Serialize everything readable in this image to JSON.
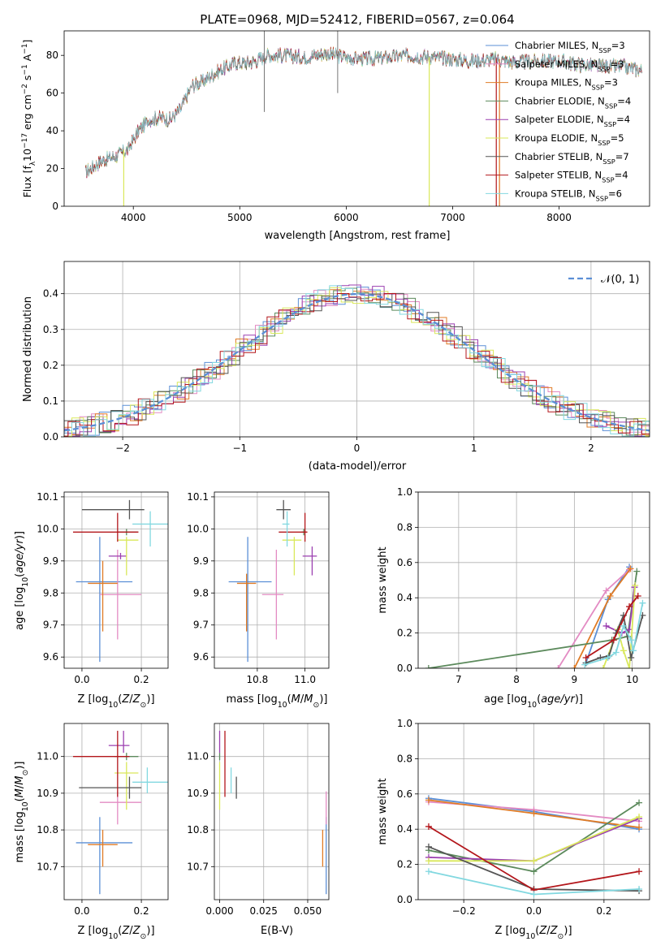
{
  "figure": {
    "title": "PLATE=0968, MJD=52412, FIBERID=0567, z=0.064"
  },
  "colors": {
    "Chabrier MILES": "#5b8fd6",
    "Salpeter MILES": "#e38bc3",
    "Kroupa MILES": "#e07b25",
    "Chabrier ELODIE": "#5c8a5c",
    "Salpeter ELODIE": "#9b3fb0",
    "Kroupa ELODIE": "#d9e85a",
    "Chabrier STELIB": "#555555",
    "Salpeter STELIB": "#b3161b",
    "Kroupa STELIB": "#82d8e0"
  },
  "chart_data": [
    {
      "id": "spectrum",
      "type": "line",
      "xlabel": "wavelength [Angstrom, rest frame]",
      "ylabel": "Flux [f",
      "xlim": [
        3350,
        8850
      ],
      "ylim": [
        0,
        93
      ],
      "xticks": [
        4000,
        5000,
        6000,
        7000,
        8000
      ],
      "yticks": [
        0,
        20,
        40,
        60,
        80
      ],
      "legend_loc": "upper right",
      "series": [
        {
          "name": "Chabrier MILES, N",
          "nssp": "=3",
          "key": "Chabrier MILES"
        },
        {
          "name": "Salpeter MILES, N",
          "nssp": "=3",
          "key": "Salpeter MILES"
        },
        {
          "name": "Kroupa MILES, N",
          "nssp": "=3",
          "key": "Kroupa MILES"
        },
        {
          "name": "Chabrier ELODIE, N",
          "nssp": "=4",
          "key": "Chabrier ELODIE"
        },
        {
          "name": "Salpeter ELODIE, N",
          "nssp": "=4",
          "key": "Salpeter ELODIE"
        },
        {
          "name": "Kroupa ELODIE, N",
          "nssp": "=5",
          "key": "Kroupa ELODIE"
        },
        {
          "name": "Chabrier STELIB, N",
          "nssp": "=7",
          "key": "Chabrier STELIB"
        },
        {
          "name": "Salpeter STELIB, N",
          "nssp": "=4",
          "key": "Salpeter STELIB"
        },
        {
          "name": "Kroupa STELIB, N",
          "nssp": "=6",
          "key": "Kroupa STELIB"
        }
      ],
      "envelope": [
        [
          3550,
          18
        ],
        [
          3700,
          24
        ],
        [
          3850,
          27
        ],
        [
          3950,
          30
        ],
        [
          4050,
          40
        ],
        [
          4150,
          46
        ],
        [
          4250,
          47
        ],
        [
          4350,
          46
        ],
        [
          4450,
          52
        ],
        [
          4550,
          64
        ],
        [
          4650,
          66
        ],
        [
          4750,
          70
        ],
        [
          4850,
          73
        ],
        [
          4950,
          76
        ],
        [
          5050,
          76
        ],
        [
          5150,
          77
        ],
        [
          5250,
          80
        ],
        [
          5400,
          80
        ],
        [
          5600,
          79
        ],
        [
          5800,
          81
        ],
        [
          6000,
          79
        ],
        [
          6200,
          78
        ],
        [
          6400,
          79
        ],
        [
          6600,
          80
        ],
        [
          6800,
          79
        ],
        [
          7000,
          78
        ],
        [
          7200,
          77
        ],
        [
          7400,
          78
        ],
        [
          7600,
          76
        ],
        [
          7800,
          77
        ],
        [
          8000,
          77
        ],
        [
          8200,
          75
        ],
        [
          8400,
          74
        ],
        [
          8600,
          74
        ],
        [
          8780,
          72
        ]
      ]
    },
    {
      "id": "residuals",
      "type": "histogram",
      "xlabel": "(data-model)/error",
      "ylabel": "Normed distribution",
      "xlim": [
        -2.5,
        2.5
      ],
      "ylim": [
        0,
        0.49
      ],
      "xticks": [
        -2,
        -1,
        0,
        1,
        2
      ],
      "yticks": [
        0.0,
        0.1,
        0.2,
        0.3,
        0.4
      ],
      "grid": true,
      "legend_loc": "upper right",
      "legend_label": "𝒩(0, 1)",
      "gaussian": {
        "mean": 0,
        "sigma": 1
      }
    },
    {
      "id": "age_vs_Z",
      "type": "scatter",
      "xlabel": "Z [log",
      "ylabel": "age  [log",
      "xlim": [
        -0.06,
        0.29
      ],
      "ylim": [
        9.565,
        10.115
      ],
      "xticks": [
        0.0,
        0.2
      ],
      "yticks": [
        9.6,
        9.7,
        9.8,
        9.9,
        10.0,
        10.1
      ],
      "grid": true,
      "points": [
        {
          "key": "Chabrier MILES",
          "x": 0.06,
          "y": 9.835,
          "xerr": [
            0.08,
            0.11
          ],
          "yerr": [
            0.25,
            0.14
          ]
        },
        {
          "key": "Salpeter MILES",
          "x": 0.12,
          "y": 9.795,
          "xerr": [
            0.06,
            0.08
          ],
          "yerr": [
            0.14,
            0.14
          ]
        },
        {
          "key": "Kroupa MILES",
          "x": 0.07,
          "y": 9.83,
          "xerr": [
            0.05,
            0.05
          ],
          "yerr": [
            0.15,
            0.07
          ]
        },
        {
          "key": "Chabrier ELODIE",
          "x": 0.15,
          "y": 9.99,
          "xerr": [
            0.03,
            0.04
          ],
          "yerr": [
            0.01,
            0.01
          ]
        },
        {
          "key": "Salpeter ELODIE",
          "x": 0.13,
          "y": 9.915,
          "xerr": [
            0.04,
            0.02
          ],
          "yerr": [
            0.01,
            0.01
          ]
        },
        {
          "key": "Kroupa ELODIE",
          "x": 0.15,
          "y": 9.965,
          "xerr": [
            0.03,
            0.04
          ],
          "yerr": [
            0.11,
            0.01
          ]
        },
        {
          "key": "Chabrier STELIB",
          "x": 0.16,
          "y": 10.06,
          "xerr": [
            0.16,
            0.05
          ],
          "yerr": [
            0.03,
            0.03
          ]
        },
        {
          "key": "Salpeter STELIB",
          "x": 0.12,
          "y": 9.99,
          "xerr": [
            0.15,
            0.07
          ],
          "yerr": [
            0.03,
            0.06
          ]
        },
        {
          "key": "Kroupa STELIB",
          "x": 0.23,
          "y": 10.015,
          "xerr": [
            0.06,
            0.07
          ],
          "yerr": [
            0.07,
            0.04
          ]
        }
      ]
    },
    {
      "id": "age_vs_mass",
      "type": "scatter",
      "xlabel": "mass [log",
      "ylabel": "",
      "xlim": [
        10.62,
        11.1
      ],
      "ylim": [
        9.565,
        10.115
      ],
      "xticks": [
        10.8,
        11.0
      ],
      "yticks": [
        9.6,
        9.7,
        9.8,
        9.9,
        10.0,
        10.1
      ],
      "grid": true,
      "points": [
        {
          "key": "Chabrier MILES",
          "x": 10.76,
          "y": 9.835,
          "xerr": [
            0.08,
            0.1
          ],
          "yerr": [
            0.25,
            0.14
          ]
        },
        {
          "key": "Salpeter MILES",
          "x": 10.88,
          "y": 9.795,
          "xerr": [
            0.06,
            0.03
          ],
          "yerr": [
            0.14,
            0.14
          ]
        },
        {
          "key": "Kroupa MILES",
          "x": 10.755,
          "y": 9.83,
          "xerr": [
            0.04,
            0.04
          ],
          "yerr": [
            0.15,
            0.03
          ]
        },
        {
          "key": "Chabrier ELODIE",
          "x": 10.995,
          "y": 9.99,
          "xerr": [
            0.01,
            0.01
          ],
          "yerr": [
            0.01,
            0.01
          ]
        },
        {
          "key": "Salpeter ELODIE",
          "x": 11.03,
          "y": 9.915,
          "xerr": [
            0.04,
            0.02
          ],
          "yerr": [
            0.06,
            0.03
          ]
        },
        {
          "key": "Kroupa ELODIE",
          "x": 10.955,
          "y": 9.965,
          "xerr": [
            0.05,
            0.03
          ],
          "yerr": [
            0.11,
            0.01
          ]
        },
        {
          "key": "Chabrier STELIB",
          "x": 10.91,
          "y": 10.06,
          "xerr": [
            0.03,
            0.03
          ],
          "yerr": [
            0.03,
            0.03
          ]
        },
        {
          "key": "Salpeter STELIB",
          "x": 11.0,
          "y": 9.99,
          "xerr": [
            0.11,
            0.01
          ],
          "yerr": [
            0.03,
            0.06
          ]
        },
        {
          "key": "Kroupa STELIB",
          "x": 10.925,
          "y": 10.015,
          "xerr": [
            0.02,
            0.01
          ],
          "yerr": [
            0.07,
            0.04
          ]
        }
      ]
    },
    {
      "id": "weights_vs_age",
      "type": "line",
      "xlabel": "age  [log",
      "ylabel": "mass weight",
      "xlim": [
        6.3,
        10.3
      ],
      "ylim": [
        0,
        1
      ],
      "xticks": [
        7,
        8,
        9,
        10
      ],
      "yticks": [
        0.0,
        0.2,
        0.4,
        0.6,
        0.8,
        1.0
      ],
      "grid": true,
      "series": [
        {
          "key": "Chabrier MILES",
          "x": [
            9.2,
            9.58,
            9.95
          ],
          "y": [
            0.03,
            0.39,
            0.575
          ]
        },
        {
          "key": "Salpeter MILES",
          "x": [
            8.72,
            9.55,
            9.95
          ],
          "y": [
            0.0,
            0.44,
            0.56
          ]
        },
        {
          "key": "Kroupa MILES",
          "x": [
            9.0,
            9.62,
            9.97
          ],
          "y": [
            0.0,
            0.41,
            0.565
          ]
        },
        {
          "key": "Chabrier ELODIE",
          "x": [
            6.48,
            9.65,
            9.92,
            10.08
          ],
          "y": [
            0.0,
            0.16,
            0.18,
            0.55
          ]
        },
        {
          "key": "Salpeter ELODIE",
          "x": [
            9.55,
            9.82,
            9.95,
            10.04
          ],
          "y": [
            0.24,
            0.2,
            0.22,
            0.46
          ]
        },
        {
          "key": "Kroupa ELODIE",
          "x": [
            9.5,
            9.75,
            9.85,
            9.95,
            10.05
          ],
          "y": [
            0.0,
            0.22,
            0.1,
            0.0,
            0.47
          ]
        },
        {
          "key": "Chabrier STELIB",
          "x": [
            9.2,
            9.45,
            9.6,
            9.72,
            9.85,
            9.98,
            10.18
          ],
          "y": [
            0.03,
            0.06,
            0.07,
            0.2,
            0.3,
            0.06,
            0.3
          ]
        },
        {
          "key": "Salpeter STELIB",
          "x": [
            9.2,
            9.68,
            9.95,
            10.1
          ],
          "y": [
            0.06,
            0.16,
            0.35,
            0.41
          ]
        },
        {
          "key": "Kroupa STELIB",
          "x": [
            9.18,
            9.58,
            9.72,
            9.85,
            9.98,
            10.02,
            10.18
          ],
          "y": [
            0.02,
            0.06,
            0.09,
            0.24,
            0.16,
            0.1,
            0.37
          ]
        }
      ]
    },
    {
      "id": "mass_vs_Z",
      "type": "scatter",
      "xlabel": "Z [log",
      "ylabel": "mass [log",
      "xlim": [
        -0.06,
        0.29
      ],
      "ylim": [
        10.61,
        11.09
      ],
      "xticks": [
        0.0,
        0.2
      ],
      "yticks": [
        10.7,
        10.8,
        10.9,
        11.0
      ],
      "grid": true,
      "points": [
        {
          "key": "Chabrier MILES",
          "x": 0.06,
          "y": 10.765,
          "xerr": [
            0.08,
            0.11
          ],
          "yerr": [
            0.14,
            0.07
          ]
        },
        {
          "key": "Salpeter MILES",
          "x": 0.12,
          "y": 10.875,
          "xerr": [
            0.06,
            0.08
          ],
          "yerr": [
            0.06,
            0.03
          ]
        },
        {
          "key": "Kroupa MILES",
          "x": 0.07,
          "y": 10.76,
          "xerr": [
            0.05,
            0.05
          ],
          "yerr": [
            0.06,
            0.04
          ]
        },
        {
          "key": "Chabrier ELODIE",
          "x": 0.15,
          "y": 11.0,
          "xerr": [
            0.04,
            0.04
          ],
          "yerr": [
            0.01,
            0.01
          ]
        },
        {
          "key": "Salpeter ELODIE",
          "x": 0.14,
          "y": 11.03,
          "xerr": [
            0.05,
            0.02
          ],
          "yerr": [
            0.02,
            0.04
          ]
        },
        {
          "key": "Kroupa ELODIE",
          "x": 0.15,
          "y": 10.955,
          "xerr": [
            0.04,
            0.04
          ],
          "yerr": [
            0.1,
            0.03
          ]
        },
        {
          "key": "Chabrier STELIB",
          "x": 0.16,
          "y": 10.915,
          "xerr": [
            0.17,
            0.04
          ],
          "yerr": [
            0.03,
            0.03
          ]
        },
        {
          "key": "Salpeter STELIB",
          "x": 0.12,
          "y": 11.0,
          "xerr": [
            0.15,
            0.04
          ],
          "yerr": [
            0.11,
            0.07
          ]
        },
        {
          "key": "Kroupa STELIB",
          "x": 0.22,
          "y": 10.93,
          "xerr": [
            0.05,
            0.08
          ],
          "yerr": [
            0.03,
            0.04
          ]
        }
      ]
    },
    {
      "id": "mass_vs_ebv",
      "type": "scatter",
      "xlabel": "E(B-V)",
      "ylabel": "",
      "xlim": [
        -0.003,
        0.062
      ],
      "ylim": [
        10.61,
        11.09
      ],
      "xticks": [
        0.0,
        0.025,
        0.05
      ],
      "xticklabels": [
        "0.000",
        "0.025",
        "0.050"
      ],
      "yticks": [
        10.7,
        10.8,
        10.9,
        11.0
      ],
      "grid": true,
      "points": [
        {
          "key": "Chabrier MILES",
          "x": 0.0605,
          "y": 10.765,
          "xerr": [
            0,
            0
          ],
          "yerr": [
            0.14,
            0.07
          ]
        },
        {
          "key": "Salpeter MILES",
          "x": 0.0605,
          "y": 10.875,
          "xerr": [
            0,
            0
          ],
          "yerr": [
            0.06,
            0.03
          ]
        },
        {
          "key": "Kroupa MILES",
          "x": 0.0585,
          "y": 10.76,
          "xerr": [
            0,
            0
          ],
          "yerr": [
            0.06,
            0.04
          ]
        },
        {
          "key": "Chabrier ELODIE",
          "x": 0.0,
          "y": 11.0,
          "xerr": [
            0,
            0
          ],
          "yerr": [
            0.01,
            0.01
          ]
        },
        {
          "key": "Salpeter ELODIE",
          "x": 0.0,
          "y": 11.03,
          "xerr": [
            0,
            0
          ],
          "yerr": [
            0.02,
            0.04
          ]
        },
        {
          "key": "Kroupa ELODIE",
          "x": 0.0,
          "y": 10.955,
          "xerr": [
            0,
            0
          ],
          "yerr": [
            0.1,
            0.03
          ]
        },
        {
          "key": "Chabrier STELIB",
          "x": 0.0095,
          "y": 10.915,
          "xerr": [
            0,
            0
          ],
          "yerr": [
            0.03,
            0.03
          ]
        },
        {
          "key": "Salpeter STELIB",
          "x": 0.003,
          "y": 11.0,
          "xerr": [
            0,
            0
          ],
          "yerr": [
            0.11,
            0.07
          ]
        },
        {
          "key": "Kroupa STELIB",
          "x": 0.0065,
          "y": 10.93,
          "xerr": [
            0,
            0
          ],
          "yerr": [
            0.03,
            0.04
          ]
        }
      ]
    },
    {
      "id": "weights_vs_Z",
      "type": "line",
      "xlabel": "Z [log",
      "ylabel": "mass weight",
      "xlim": [
        -0.33,
        0.33
      ],
      "ylim": [
        0,
        1
      ],
      "xticks": [
        -0.2,
        0.0,
        0.2
      ],
      "xticklabels": [
        "−0.2",
        "0.0",
        "0.2"
      ],
      "yticks": [
        0.0,
        0.2,
        0.4,
        0.6,
        0.8,
        1.0
      ],
      "grid": true,
      "series": [
        {
          "key": "Chabrier MILES",
          "x": [
            -0.3,
            0.0,
            0.3
          ],
          "y": [
            0.575,
            0.5,
            0.4
          ]
        },
        {
          "key": "Salpeter MILES",
          "x": [
            -0.3,
            0.0,
            0.3
          ],
          "y": [
            0.555,
            0.51,
            0.445
          ]
        },
        {
          "key": "Kroupa MILES",
          "x": [
            -0.3,
            0.0,
            0.3
          ],
          "y": [
            0.565,
            0.49,
            0.41
          ]
        },
        {
          "key": "Chabrier ELODIE",
          "x": [
            -0.3,
            0.0,
            0.3
          ],
          "y": [
            0.28,
            0.16,
            0.55
          ]
        },
        {
          "key": "Salpeter ELODIE",
          "x": [
            -0.3,
            0.0,
            0.3
          ],
          "y": [
            0.24,
            0.22,
            0.46
          ]
        },
        {
          "key": "Kroupa ELODIE",
          "x": [
            -0.3,
            0.0,
            0.3
          ],
          "y": [
            0.22,
            0.22,
            0.47
          ]
        },
        {
          "key": "Chabrier STELIB",
          "x": [
            -0.3,
            0.0,
            0.3
          ],
          "y": [
            0.3,
            0.06,
            0.05
          ]
        },
        {
          "key": "Salpeter STELIB",
          "x": [
            -0.3,
            0.0,
            0.3
          ],
          "y": [
            0.415,
            0.055,
            0.16
          ]
        },
        {
          "key": "Kroupa STELIB",
          "x": [
            -0.3,
            0.0,
            0.3
          ],
          "y": [
            0.16,
            0.03,
            0.06
          ]
        }
      ]
    }
  ]
}
